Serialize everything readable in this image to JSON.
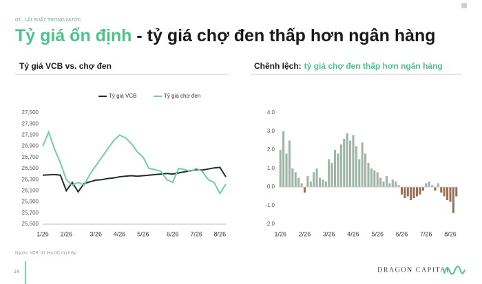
{
  "header": {
    "section": "03 · LÃI SUẤT TRONG NƯỚC",
    "title_highlight": "Tỷ giá ổn định",
    "title_rest": " - tỷ giá chợ đen thấp hơn ngân hàng"
  },
  "chart_data": [
    {
      "type": "line",
      "title": "Tỷ giá VCB vs. chợ đen",
      "categories": [
        "1/26",
        null,
        null,
        null,
        "2/26",
        null,
        null,
        null,
        null,
        "3/26",
        null,
        null,
        null,
        "4/26",
        null,
        null,
        null,
        "5/26",
        null,
        null,
        null,
        null,
        "6/26",
        null,
        null,
        null,
        "7/26",
        null,
        null,
        null,
        "8/26",
        null
      ],
      "series": [
        {
          "name": "Tỷ giá VCB",
          "color": "#1f2d28",
          "values": [
            26380,
            26385,
            26390,
            26380,
            26100,
            26250,
            26080,
            26230,
            26260,
            26290,
            26300,
            26320,
            26330,
            26350,
            26360,
            26370,
            26360,
            26370,
            26380,
            26390,
            26400,
            26410,
            26400,
            26420,
            26440,
            26460,
            26480,
            26470,
            26490,
            26510,
            26520,
            26350
          ]
        },
        {
          "name": "Tỷ giá chợ đen",
          "color": "#6fcf9d",
          "values": [
            26900,
            27150,
            26850,
            26600,
            26300,
            26200,
            26250,
            26200,
            26400,
            26550,
            26700,
            26850,
            27000,
            27100,
            27050,
            26950,
            26800,
            26700,
            26500,
            26480,
            26450,
            26300,
            26250,
            26500,
            26480,
            26450,
            26500,
            26450,
            26300,
            26250,
            26050,
            26220
          ]
        }
      ],
      "ylim": [
        25500,
        27500
      ],
      "yticks": [
        {
          "value": 25500,
          "label": "25,500"
        },
        {
          "value": 25700,
          "label": "25,700"
        },
        {
          "value": 25900,
          "label": "25,900"
        },
        {
          "value": 26100,
          "label": "26,100"
        },
        {
          "value": 26300,
          "label": "26,300"
        },
        {
          "value": 26500,
          "label": "26,500"
        },
        {
          "value": 26700,
          "label": "26,700"
        },
        {
          "value": 26900,
          "label": "26,900"
        },
        {
          "value": 27100,
          "label": "27,100"
        },
        {
          "value": 27300,
          "label": "27,300"
        },
        {
          "value": 27500,
          "label": "27,500"
        }
      ],
      "grid": false,
      "legend": "top"
    },
    {
      "type": "bar",
      "title_prefix": "Chênh lệch:",
      "title": "tỷ giá chợ đen thấp hơn ngân hàng",
      "categories": [
        "1/26",
        null,
        null,
        null,
        null,
        null,
        null,
        null,
        "2/26",
        null,
        null,
        null,
        null,
        null,
        null,
        null,
        "3/26",
        null,
        null,
        null,
        null,
        null,
        null,
        null,
        "4/26",
        null,
        null,
        null,
        null,
        null,
        null,
        null,
        "5/26",
        null,
        null,
        null,
        null,
        null,
        null,
        null,
        "6/26",
        null,
        null,
        null,
        null,
        null,
        null,
        null,
        "7/26",
        null,
        null,
        null,
        null,
        null,
        null,
        null,
        "8/26",
        null,
        null
      ],
      "values": [
        2.0,
        3.0,
        1.8,
        2.5,
        1.0,
        0.8,
        0.5,
        0.2,
        -0.3,
        0.6,
        0.3,
        0.8,
        1.0,
        0.5,
        0.4,
        0.3,
        1.5,
        1.3,
        2.0,
        1.8,
        2.3,
        2.6,
        2.9,
        2.5,
        2.8,
        2.2,
        1.5,
        2.4,
        1.8,
        1.3,
        1.0,
        0.9,
        0.8,
        0.5,
        0.3,
        0.6,
        0.2,
        0.4,
        0.3,
        0.1,
        -0.4,
        -0.6,
        -0.5,
        -0.7,
        -0.6,
        -0.5,
        -0.4,
        -0.2,
        0.2,
        0.3,
        0.1,
        -0.2,
        0.2,
        -0.3,
        -0.5,
        -0.7,
        -0.8,
        -1.4,
        -0.5
      ],
      "colors": {
        "positive": "#9fb3a8",
        "negative": "#9b6f55"
      },
      "ylim": [
        -2,
        4
      ],
      "yticks": [
        {
          "value": -2,
          "label": "-2.0"
        },
        {
          "value": -1,
          "label": "-1.0"
        },
        {
          "value": 0,
          "label": "0.0"
        },
        {
          "value": 1,
          "label": "1.0"
        },
        {
          "value": 2,
          "label": "2.0"
        },
        {
          "value": 3,
          "label": "3.0"
        },
        {
          "value": 4,
          "label": "4.0"
        }
      ],
      "grid": false
    }
  ],
  "footer": {
    "source": "Nguồn: VCB, dữ liệu DC thu thập",
    "page": "14",
    "brand": "DRAGON CAPITAL"
  }
}
